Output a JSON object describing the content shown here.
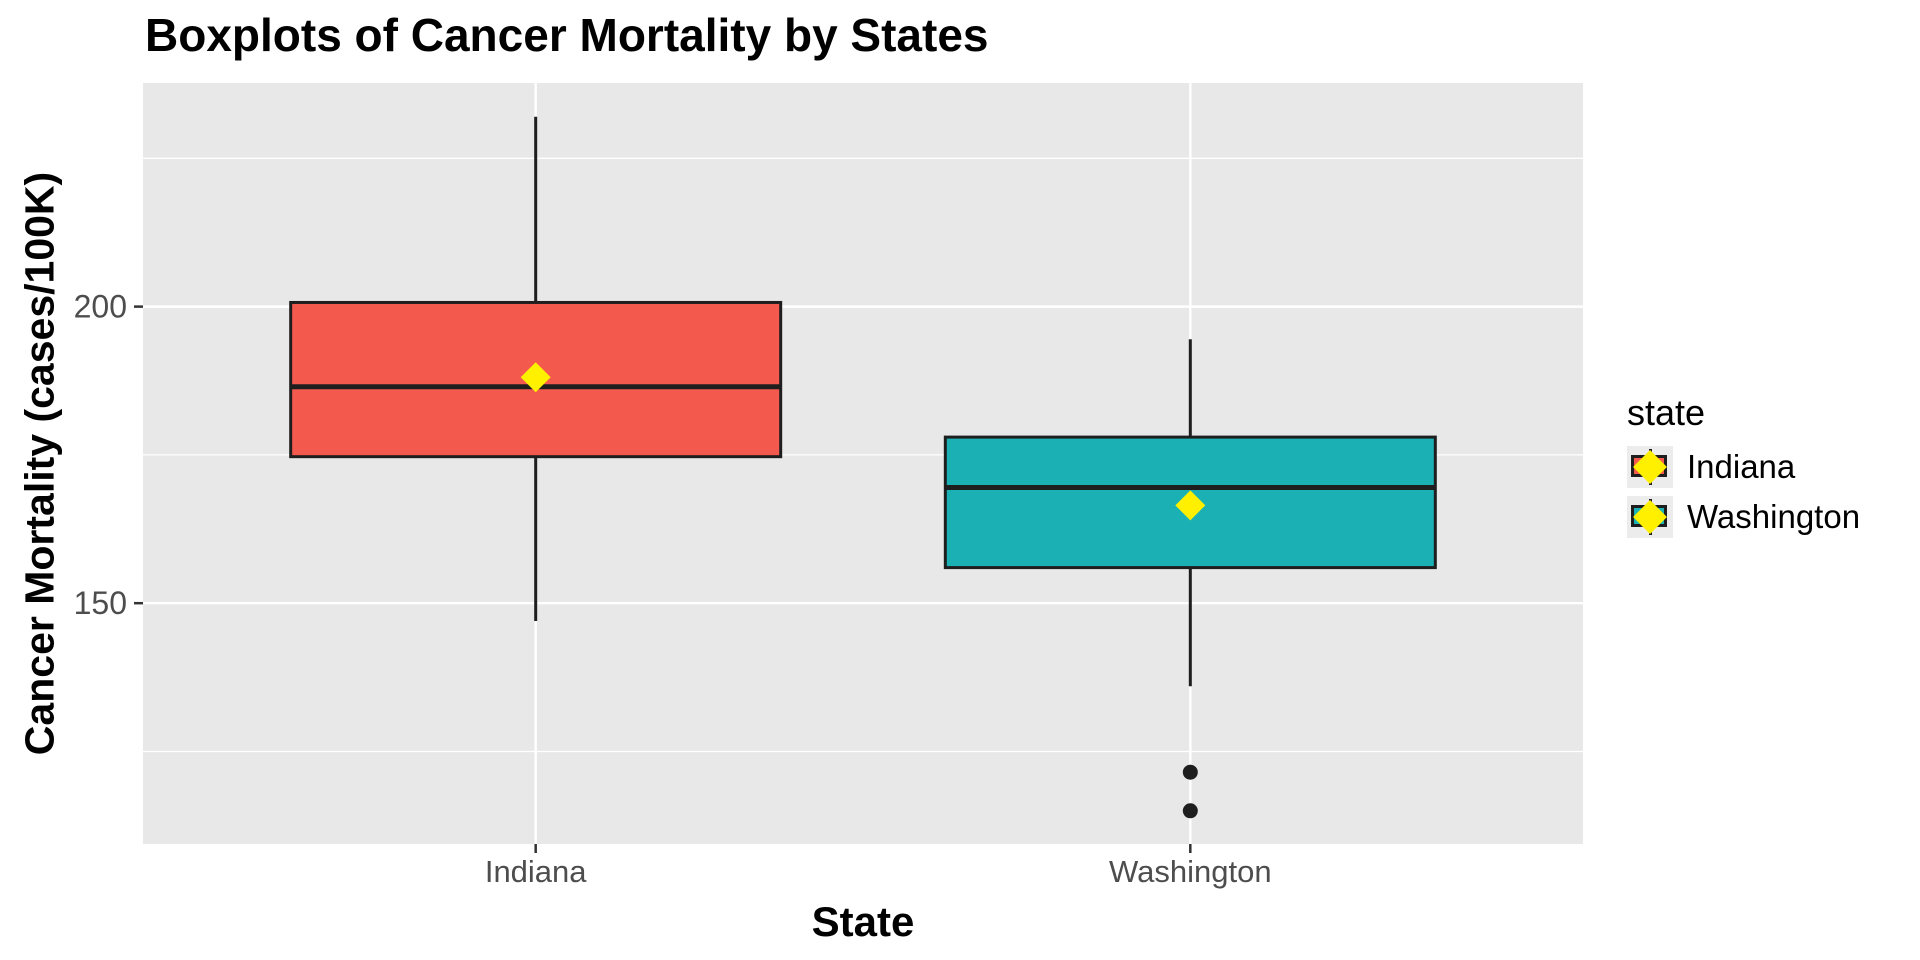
{
  "title": "Boxplots of Cancer Mortality by States",
  "chart_data": {
    "type": "boxplot",
    "title": "Boxplots of Cancer Mortality by States",
    "xlabel": "State",
    "ylabel": "Cancer Mortality (cases/100K)",
    "categories": [
      "Indiana",
      "Washington"
    ],
    "ylim": [
      109.4,
      237.7
    ],
    "y_major_ticks": [
      150,
      200
    ],
    "y_minor_ticks": [
      125,
      175,
      225
    ],
    "grid": "on",
    "legend_position": "right",
    "series": [
      {
        "name": "Indiana",
        "min": 147,
        "q1": 174.7,
        "median": 186.5,
        "q3": 200.7,
        "max": 232,
        "mean": 188.1,
        "outliers": [],
        "fill_color": "#F4594E"
      },
      {
        "name": "Washington",
        "min": 136,
        "q1": 156,
        "median": 169.5,
        "q3": 178,
        "max": 194.5,
        "mean": 166.5,
        "outliers": [
          121.5,
          115
        ],
        "fill_color": "#1AB0B4"
      }
    ]
  },
  "legend": {
    "title": "state",
    "entries": [
      {
        "label": "Indiana"
      },
      {
        "label": "Washington"
      }
    ]
  },
  "colors": {
    "mean_marker": "#FFF000",
    "panel_background": "#E8E8E8",
    "gridline": "#FFFFFF",
    "box_border": "#1E1E1E",
    "outlier": "#1E1E1E",
    "tick_label_text": "#4D4D4D",
    "tick_mark": "#333333"
  }
}
